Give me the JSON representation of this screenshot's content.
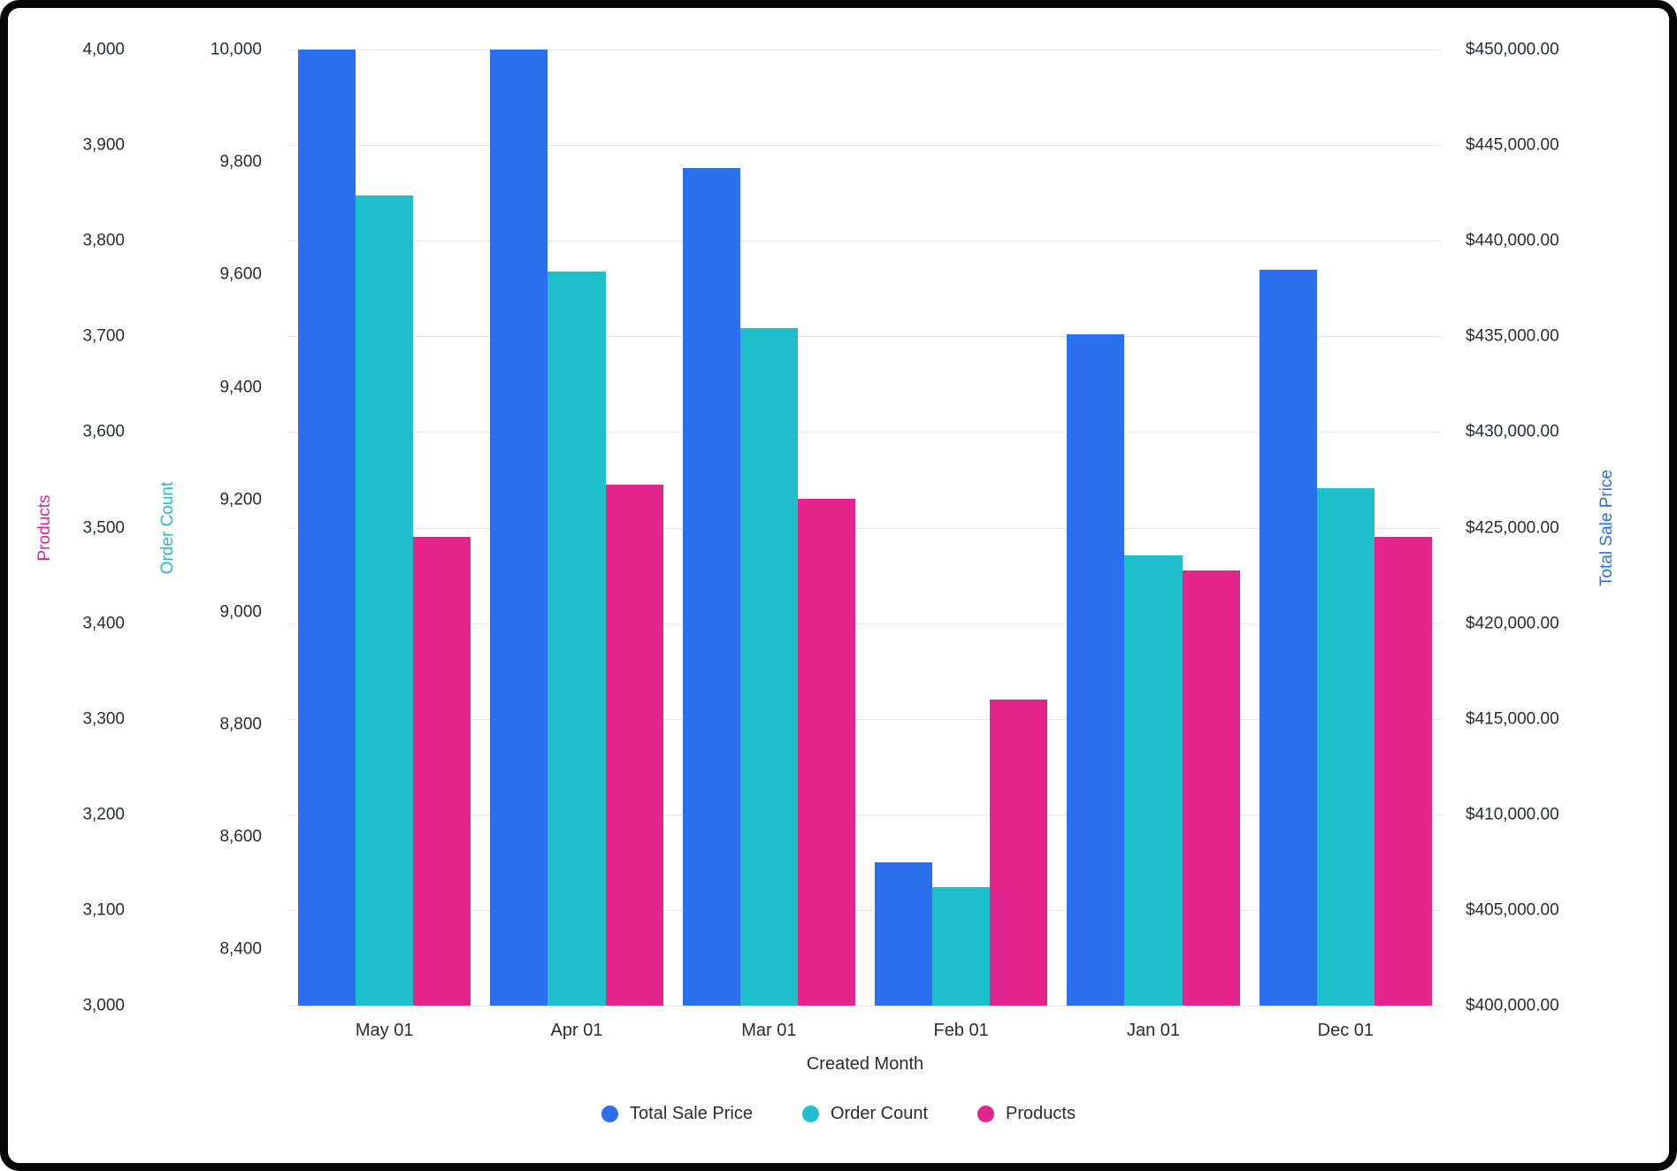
{
  "chart_data": {
    "type": "bar",
    "title": "",
    "x_axis_title": "Created Month",
    "categories": [
      "May 01",
      "Apr 01",
      "Mar 01",
      "Feb 01",
      "Jan 01",
      "Dec 01"
    ],
    "series": [
      {
        "name": "Total Sale Price",
        "color": "#2b6fed",
        "axis": "sale",
        "values": [
          450000,
          450000,
          443800,
          407500,
          435100,
          438500
        ]
      },
      {
        "name": "Order Count",
        "color": "#1fbecb",
        "axis": "orders",
        "values": [
          9740,
          9605,
          9505,
          8510,
          9100,
          9220
        ]
      },
      {
        "name": "Products",
        "color": "#e5258e",
        "axis": "products",
        "values": [
          3490,
          3545,
          3530,
          3320,
          3455,
          3490
        ]
      }
    ],
    "axes": {
      "products": {
        "title": "Products",
        "color": "#e5258e",
        "min": 3000,
        "max": 4000,
        "tick_values": [
          3000,
          3100,
          3200,
          3300,
          3400,
          3500,
          3600,
          3700,
          3800,
          3900,
          4000
        ],
        "tick_labels": [
          "3,000",
          "3,100",
          "3,200",
          "3,300",
          "3,400",
          "3,500",
          "3,600",
          "3,700",
          "3,800",
          "3,900",
          "4,000"
        ]
      },
      "orders": {
        "title": "Order Count",
        "color": "#1fbecb",
        "min": 8300,
        "max": 10000,
        "tick_values": [
          8400,
          8600,
          8800,
          9000,
          9200,
          9400,
          9600,
          9800,
          10000
        ],
        "tick_labels": [
          "8,400",
          "8,600",
          "8,800",
          "9,000",
          "9,200",
          "9,400",
          "9,600",
          "9,800",
          "10,000"
        ]
      },
      "sale": {
        "title": "Total Sale Price",
        "color": "#2b6fed",
        "min": 400000,
        "max": 450000,
        "tick_values": [
          400000,
          405000,
          410000,
          415000,
          420000,
          425000,
          430000,
          435000,
          440000,
          445000,
          450000
        ],
        "tick_labels": [
          "$400,000.00",
          "$405,000.00",
          "$410,000.00",
          "$415,000.00",
          "$420,000.00",
          "$425,000.00",
          "$430,000.00",
          "$435,000.00",
          "$440,000.00",
          "$445,000.00",
          "$450,000.00"
        ]
      }
    },
    "legend": {
      "position": "bottom",
      "items": [
        "Total Sale Price",
        "Order Count",
        "Products"
      ]
    },
    "grid": true
  }
}
